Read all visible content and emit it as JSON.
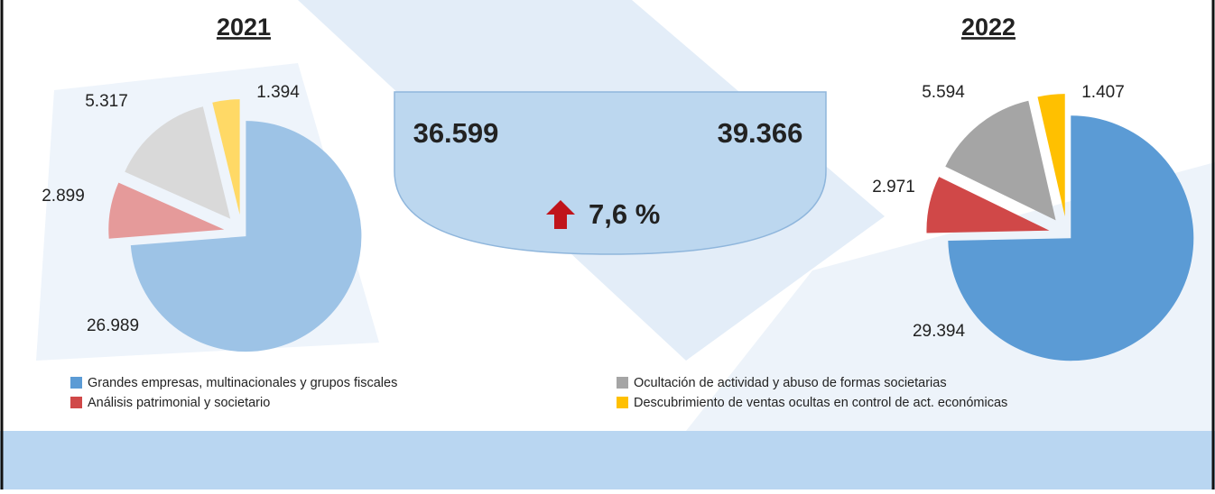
{
  "chart_data": [
    {
      "type": "pie",
      "title": "2021",
      "categories": [
        "Grandes empresas, multinacionales y grupos fiscales",
        "Análisis patrimonial y societario",
        "Ocultación de actividad y abuso de formas societarias",
        "Descubrimiento de ventas ocultas en control de act. económicas"
      ],
      "values": [
        26989,
        2899,
        5317,
        1394
      ],
      "value_labels": [
        "26.989",
        "2.899",
        "5.317",
        "1.394"
      ],
      "colors": [
        "#9dc3e6",
        "#e59a9a",
        "#d9d9d9",
        "#ffd966"
      ]
    },
    {
      "type": "pie",
      "title": "2022",
      "categories": [
        "Grandes empresas, multinacionales y grupos fiscales",
        "Análisis patrimonial y societario",
        "Ocultación de actividad y abuso de formas societarias",
        "Descubrimiento de ventas ocultas en control de act. económicas"
      ],
      "values": [
        29394,
        2971,
        5594,
        1407
      ],
      "value_labels": [
        "29.394",
        "2.971",
        "5.594",
        "1.407"
      ],
      "colors": [
        "#5b9bd5",
        "#d04848",
        "#a5a5a5",
        "#ffc000"
      ]
    }
  ],
  "summary": {
    "total_2021": "36.599",
    "total_2022": "39.366",
    "change": "7,6 %"
  }
}
